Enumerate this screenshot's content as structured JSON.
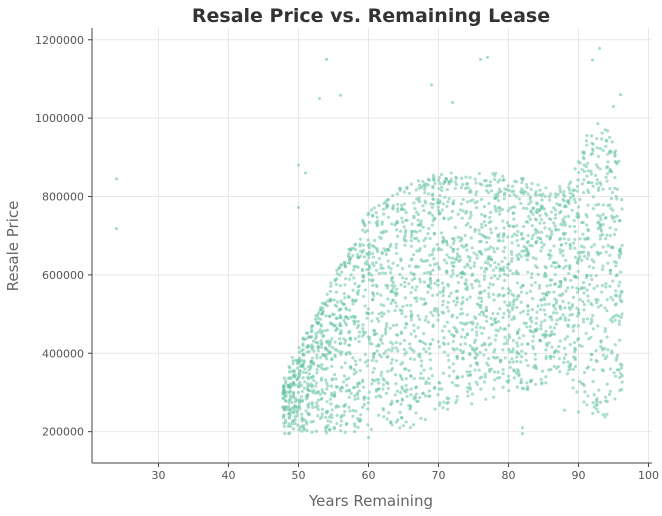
{
  "chart_data": {
    "type": "scatter",
    "title": "Resale Price vs. Remaining Lease",
    "xlabel": "Years Remaining",
    "ylabel": "Resale Price",
    "xlim": [
      20.5,
      100.5
    ],
    "ylim": [
      120000,
      1230000
    ],
    "xticks": [
      30,
      40,
      50,
      60,
      70,
      80,
      90,
      100
    ],
    "yticks": [
      200000,
      400000,
      600000,
      800000,
      1000000,
      1200000
    ],
    "xtick_labels": [
      "30",
      "40",
      "50",
      "60",
      "70",
      "80",
      "90",
      "100"
    ],
    "ytick_labels": [
      "200000",
      "400000",
      "600000",
      "800000",
      "1000000",
      "1200000"
    ],
    "grid": true,
    "point_color": "#66c2a5",
    "bands": [
      {
        "x": 48,
        "min": 190000,
        "max": 340000
      },
      {
        "x": 50,
        "min": 195000,
        "max": 420000
      },
      {
        "x": 52,
        "min": 195000,
        "max": 480000
      },
      {
        "x": 54,
        "min": 195000,
        "max": 560000
      },
      {
        "x": 56,
        "min": 195000,
        "max": 640000
      },
      {
        "x": 58,
        "min": 195000,
        "max": 700000
      },
      {
        "x": 60,
        "min": 200000,
        "max": 760000
      },
      {
        "x": 62,
        "min": 200000,
        "max": 800000
      },
      {
        "x": 64,
        "min": 205000,
        "max": 820000
      },
      {
        "x": 66,
        "min": 210000,
        "max": 840000
      },
      {
        "x": 68,
        "min": 220000,
        "max": 850000
      },
      {
        "x": 70,
        "min": 235000,
        "max": 860000
      },
      {
        "x": 72,
        "min": 255000,
        "max": 860000
      },
      {
        "x": 74,
        "min": 265000,
        "max": 860000
      },
      {
        "x": 76,
        "min": 275000,
        "max": 860000
      },
      {
        "x": 78,
        "min": 285000,
        "max": 860000
      },
      {
        "x": 80,
        "min": 290000,
        "max": 850000
      },
      {
        "x": 82,
        "min": 300000,
        "max": 850000
      },
      {
        "x": 84,
        "min": 310000,
        "max": 830000
      },
      {
        "x": 86,
        "min": 330000,
        "max": 820000
      },
      {
        "x": 88,
        "min": 350000,
        "max": 830000
      },
      {
        "x": 90,
        "min": 280000,
        "max": 900000
      },
      {
        "x": 92,
        "min": 230000,
        "max": 1000000
      },
      {
        "x": 94,
        "min": 230000,
        "max": 980000
      },
      {
        "x": 96,
        "min": 300000,
        "max": 900000
      }
    ],
    "outliers": [
      {
        "x": 24,
        "y": 845000
      },
      {
        "x": 24,
        "y": 718000
      },
      {
        "x": 53,
        "y": 1050000
      },
      {
        "x": 54,
        "y": 1150000
      },
      {
        "x": 56,
        "y": 1058000
      },
      {
        "x": 76,
        "y": 1150000
      },
      {
        "x": 77,
        "y": 1155000
      },
      {
        "x": 69,
        "y": 1085000
      },
      {
        "x": 72,
        "y": 1040000
      },
      {
        "x": 93,
        "y": 1178000
      },
      {
        "x": 92,
        "y": 1148000
      },
      {
        "x": 82,
        "y": 195000
      },
      {
        "x": 82,
        "y": 210000
      },
      {
        "x": 90,
        "y": 250000
      },
      {
        "x": 88,
        "y": 255000
      },
      {
        "x": 95,
        "y": 1030000
      },
      {
        "x": 96,
        "y": 1060000
      },
      {
        "x": 50,
        "y": 880000
      },
      {
        "x": 51,
        "y": 860000
      },
      {
        "x": 50,
        "y": 772000
      },
      {
        "x": 58,
        "y": 200000
      },
      {
        "x": 60,
        "y": 185000
      },
      {
        "x": 65,
        "y": 215000
      }
    ]
  }
}
